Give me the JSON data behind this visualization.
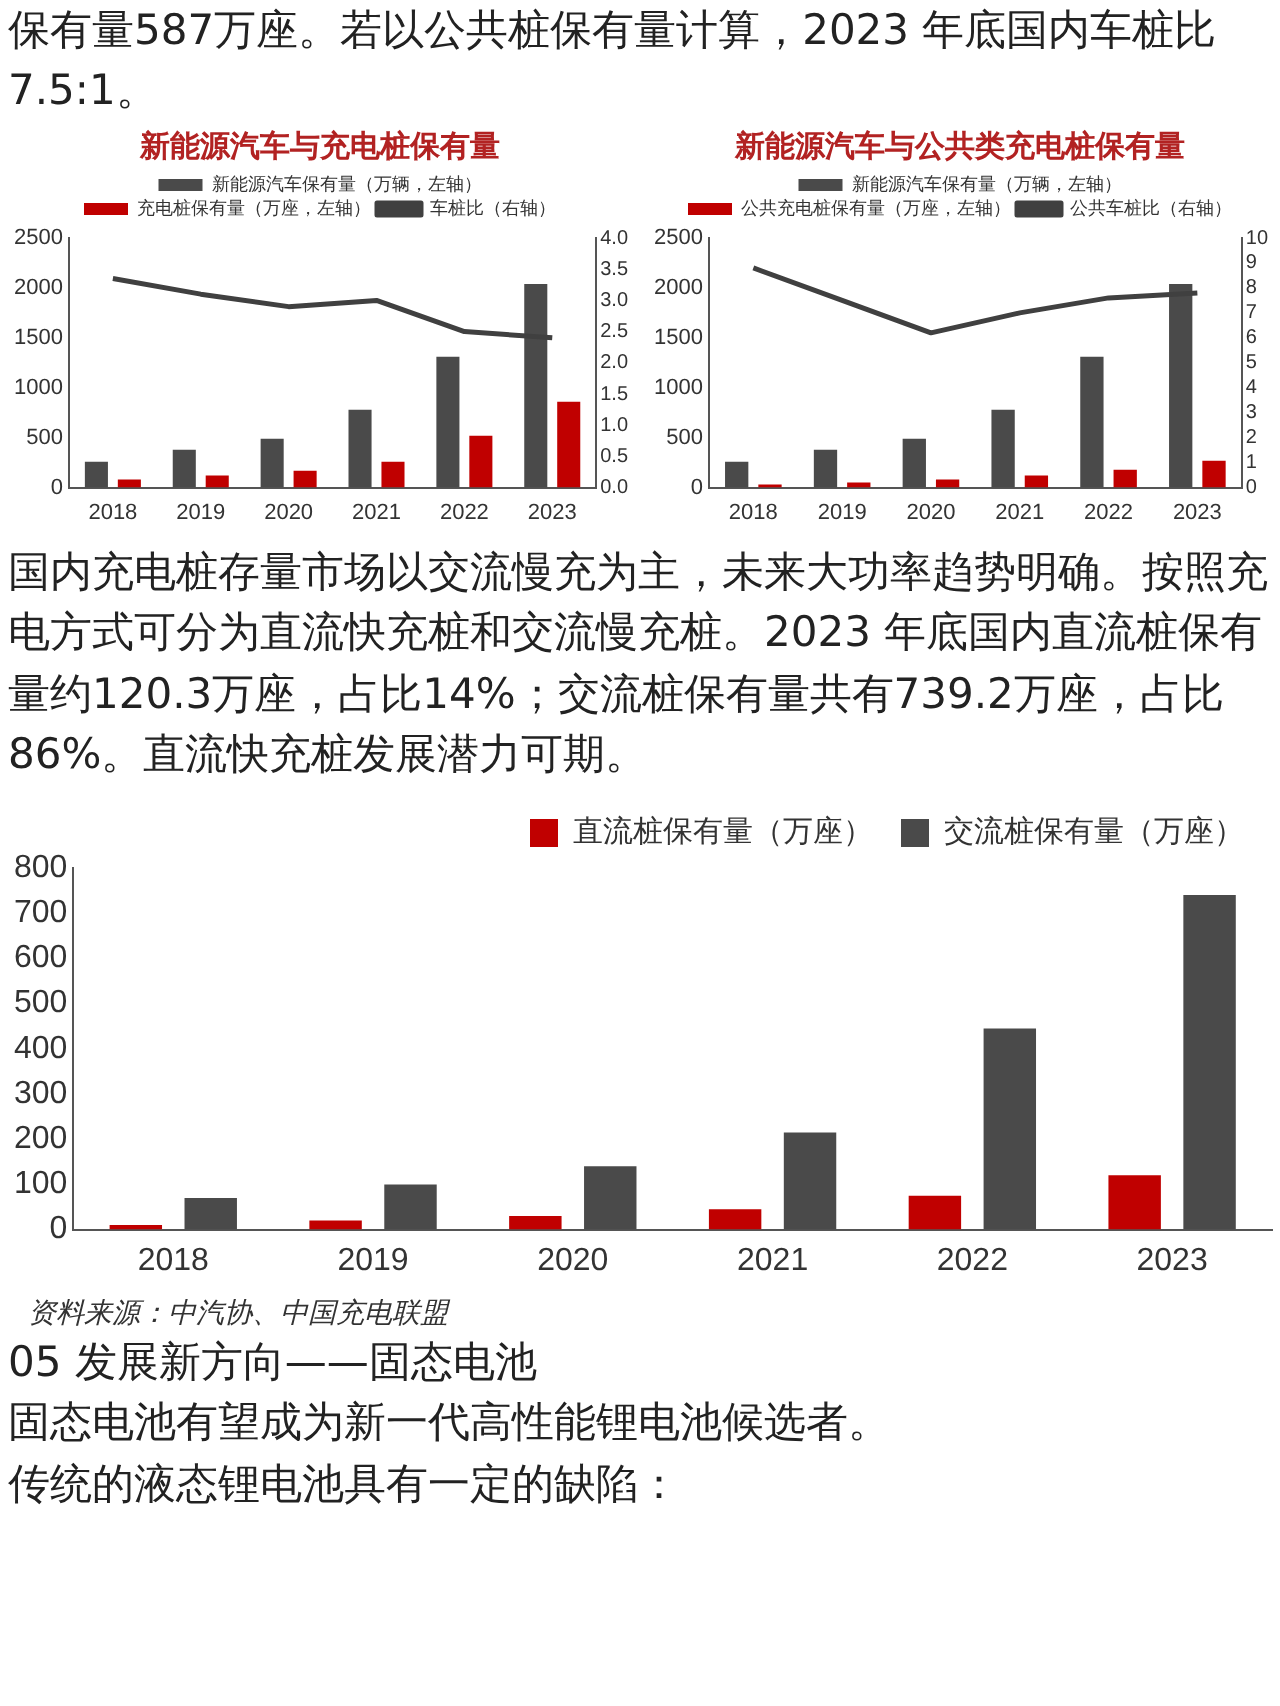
{
  "chart_data": [
    {
      "type": "other",
      "annotations": [
        "保有量587万座。若以公共桩保有量计算，2023 年底国内车桩比7.5:1。"
      ]
    },
    {
      "type": "bar",
      "title": "新能源汽车与充电桩保有量",
      "categories": [
        "2018",
        "2019",
        "2020",
        "2021",
        "2022",
        "2023"
      ],
      "series": [
        {
          "name": "新能源汽车保有量（万辆，左轴）",
          "color": "#4a4a4a",
          "values": [
            260,
            380,
            490,
            780,
            1310,
            2040
          ]
        },
        {
          "name": "充电桩保有量（万座，左轴）",
          "color": "#c00000",
          "values": [
            80,
            120,
            170,
            260,
            520,
            860
          ]
        },
        {
          "name": "车桩比（右轴）",
          "color": "#404040",
          "type": "line",
          "axis": "y2",
          "values": [
            3.35,
            3.1,
            2.9,
            3.0,
            2.5,
            2.4
          ]
        }
      ],
      "ylim": [
        0,
        2500
      ],
      "yticks": [
        0,
        500,
        1000,
        1500,
        2000,
        2500
      ],
      "y2lim": [
        0,
        4
      ],
      "y2ticks": [
        {
          "value": 0,
          "label": "0.0"
        },
        {
          "value": 0.5,
          "label": "0.5"
        },
        {
          "value": 1,
          "label": "1.0"
        },
        {
          "value": 1.5,
          "label": "1.5"
        },
        {
          "value": 2,
          "label": "2.0"
        },
        {
          "value": 2.5,
          "label": "2.5"
        },
        {
          "value": 3,
          "label": "3.0"
        },
        {
          "value": 3.5,
          "label": "3.5"
        },
        {
          "value": 4,
          "label": "4.0"
        }
      ],
      "legend": "top",
      "grid": false,
      "marker": "none",
      "line_style": "solid"
    },
    {
      "type": "bar",
      "title": "新能源汽车与公共类充电桩保有量",
      "categories": [
        "2018",
        "2019",
        "2020",
        "2021",
        "2022",
        "2023"
      ],
      "series": [
        {
          "name": "新能源汽车保有量（万辆，左轴）",
          "color": "#4a4a4a",
          "values": [
            260,
            380,
            490,
            780,
            1310,
            2040
          ]
        },
        {
          "name": "公共充电桩保有量（万座，左轴）",
          "color": "#c00000",
          "values": [
            30,
            50,
            80,
            120,
            180,
            270
          ]
        },
        {
          "name": "公共车桩比（右轴）",
          "color": "#404040",
          "type": "line",
          "axis": "y2",
          "values": [
            8.8,
            7.5,
            6.2,
            7.0,
            7.6,
            7.8
          ]
        }
      ],
      "ylim": [
        0,
        2500
      ],
      "yticks": [
        0,
        500,
        1000,
        1500,
        2000,
        2500
      ],
      "y2lim": [
        0,
        10
      ],
      "y2ticks": [
        0,
        1,
        2,
        3,
        4,
        5,
        6,
        7,
        8,
        9,
        10
      ],
      "legend": "top",
      "grid": false,
      "marker": "none",
      "line_style": "solid"
    },
    {
      "type": "other",
      "annotations": [
        "国内充电桩存量市场以交流慢充为主，未来大功率趋势明确。按照充电方式可分为直流快充桩和交流慢充桩。2023 年底国内直流桩保有量约120.3万座，占比14%；交流桩保有量共有739.2万座，占比86%。直流快充桩发展潜力可期。"
      ]
    },
    {
      "type": "bar",
      "categories": [
        "2018",
        "2019",
        "2020",
        "2021",
        "2022",
        "2023"
      ],
      "series": [
        {
          "name": "直流桩保有量（万座）",
          "color": "#c00000",
          "values": [
            10,
            20,
            30,
            45,
            75,
            120
          ]
        },
        {
          "name": "交流桩保有量（万座）",
          "color": "#4a4a4a",
          "values": [
            70,
            100,
            140,
            215,
            445,
            740
          ]
        }
      ],
      "ylim": [
        0,
        800
      ],
      "yticks": [
        0,
        100,
        200,
        300,
        400,
        500,
        600,
        700,
        800
      ],
      "legend": "top",
      "grid": false,
      "annotations": [
        "资料来源：中汽协、中国充电联盟"
      ]
    },
    {
      "type": "other",
      "annotations": [
        "05 发展新方向——固态电池",
        "固态电池有望成为新一代高性能锂电池候选者。",
        "传统的液态锂电池具有一定的缺陷："
      ]
    }
  ]
}
